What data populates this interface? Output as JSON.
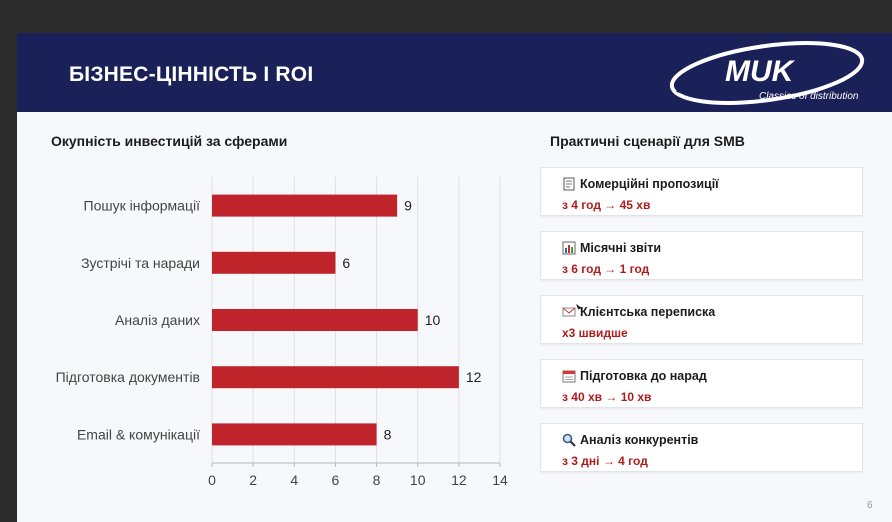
{
  "header": {
    "title": "БІЗНЕС-ЦІННІСТЬ І ROI"
  },
  "logo": {
    "brand": "MUK",
    "tagline": "Classics of distribution"
  },
  "chart_data": {
    "type": "bar",
    "orientation": "horizontal",
    "title": "Окупність инвестицій за сферами",
    "categories": [
      "Пошук інформації",
      "Зустрічі та наради",
      "Аналіз даних",
      "Підготовка документів",
      "Email & комунікації"
    ],
    "values": [
      9,
      6,
      10,
      12,
      8
    ],
    "xlim": [
      0,
      14
    ],
    "xticks": [
      0,
      2,
      4,
      6,
      8,
      10,
      12,
      14
    ],
    "grid": true,
    "bar_color": "#c0242b"
  },
  "right_panel": {
    "title": "Практичні сценарії для SMB",
    "cards": [
      {
        "icon": "document-icon",
        "title": "Комерційні пропозиції",
        "value": "з 4 год → 45 хв"
      },
      {
        "icon": "bar-chart-icon",
        "title": "Місячні звіти",
        "value": "з 6 год → 1 год"
      },
      {
        "icon": "envelope-icon",
        "title": "Клієнтська переписка",
        "value": "x3 швидше"
      },
      {
        "icon": "calendar-icon",
        "title": "Підготовка до нарад",
        "value": "з 40 хв → 10 хв"
      },
      {
        "icon": "magnifier-icon",
        "title": "Аналіз конкурентів",
        "value": "з 3 дні → 4 год"
      }
    ]
  },
  "page_number": "6"
}
